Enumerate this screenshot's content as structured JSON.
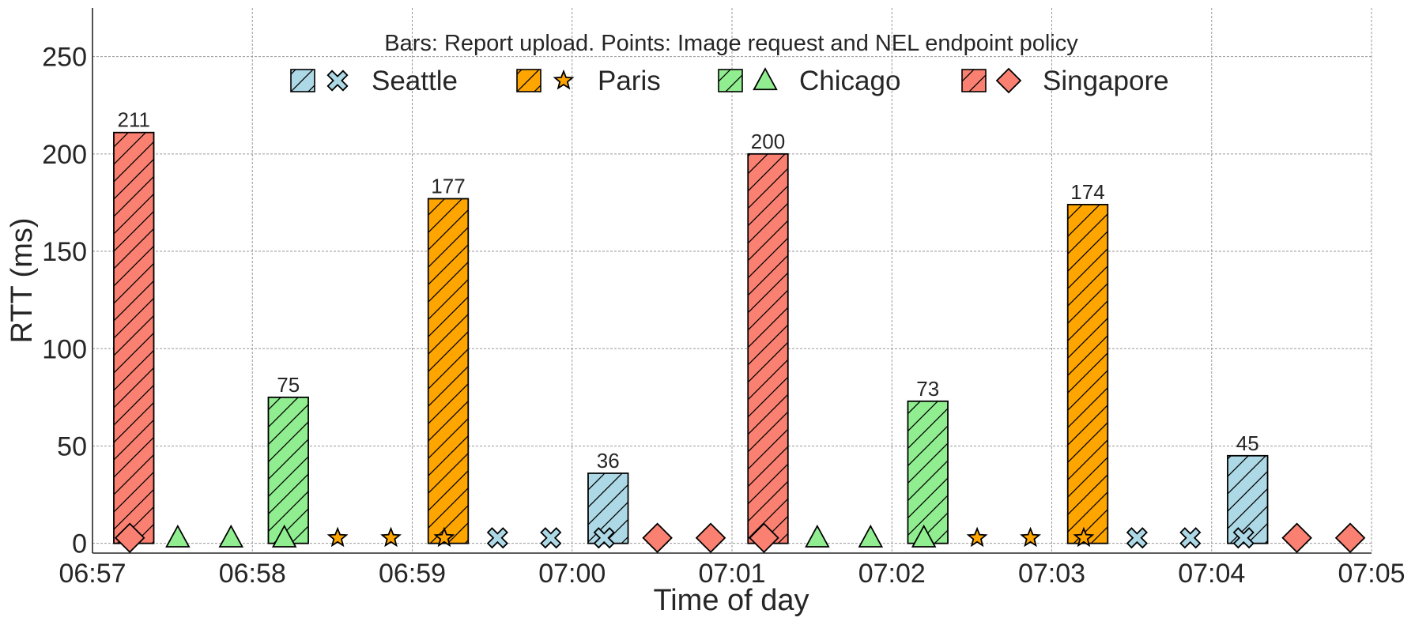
{
  "chart_data": {
    "type": "bar",
    "title": "Bars: Report upload. Points: Image request and NEL endpoint policy",
    "xlabel": "Time of day",
    "ylabel": "RTT (ms)",
    "ylim": [
      -5,
      275
    ],
    "xlim": [
      "06:57:00",
      "07:05:00"
    ],
    "x_ticks": [
      "06:57",
      "06:58",
      "06:59",
      "07:00",
      "07:01",
      "07:02",
      "07:03",
      "07:04",
      "07:05"
    ],
    "y_ticks": [
      0,
      50,
      100,
      150,
      200,
      250
    ],
    "grid": true,
    "legend_position": "top-center",
    "series": [
      {
        "name": "Seattle",
        "color": "#add8e6",
        "marker": "x-cross-icon"
      },
      {
        "name": "Paris",
        "color": "#ffa500",
        "marker": "star-icon"
      },
      {
        "name": "Chicago",
        "color": "#90ee90",
        "marker": "triangle-icon"
      },
      {
        "name": "Singapore",
        "color": "#fa8072",
        "marker": "diamond-icon"
      }
    ],
    "bars": [
      {
        "series": "Singapore",
        "start": "06:57:08",
        "end": "06:57:23",
        "value": 211,
        "label": "211"
      },
      {
        "series": "Chicago",
        "start": "06:58:06",
        "end": "06:58:21",
        "value": 75,
        "label": "75"
      },
      {
        "series": "Paris",
        "start": "06:59:06",
        "end": "06:59:21",
        "value": 177,
        "label": "177"
      },
      {
        "series": "Seattle",
        "start": "07:00:06",
        "end": "07:00:21",
        "value": 36,
        "label": "36"
      },
      {
        "series": "Singapore",
        "start": "07:01:06",
        "end": "07:01:21",
        "value": 200,
        "label": "200"
      },
      {
        "series": "Chicago",
        "start": "07:02:06",
        "end": "07:02:21",
        "value": 73,
        "label": "73"
      },
      {
        "series": "Paris",
        "start": "07:03:06",
        "end": "07:03:21",
        "value": 174,
        "label": "174"
      },
      {
        "series": "Seattle",
        "start": "07:04:06",
        "end": "07:04:21",
        "value": 45,
        "label": "45"
      }
    ],
    "points": [
      {
        "series": "Singapore",
        "t": "06:57:14",
        "value": 2
      },
      {
        "series": "Chicago",
        "t": "06:57:32",
        "value": 2
      },
      {
        "series": "Chicago",
        "t": "06:57:52",
        "value": 2
      },
      {
        "series": "Chicago",
        "t": "06:58:12",
        "value": 2
      },
      {
        "series": "Paris",
        "t": "06:58:32",
        "value": 2
      },
      {
        "series": "Paris",
        "t": "06:58:52",
        "value": 2
      },
      {
        "series": "Paris",
        "t": "06:59:12",
        "value": 2
      },
      {
        "series": "Seattle",
        "t": "06:59:32",
        "value": 2
      },
      {
        "series": "Seattle",
        "t": "06:59:52",
        "value": 2
      },
      {
        "series": "Seattle",
        "t": "07:00:12",
        "value": 2
      },
      {
        "series": "Singapore",
        "t": "07:00:32",
        "value": 2
      },
      {
        "series": "Singapore",
        "t": "07:00:52",
        "value": 2
      },
      {
        "series": "Singapore",
        "t": "07:01:12",
        "value": 2
      },
      {
        "series": "Chicago",
        "t": "07:01:32",
        "value": 2
      },
      {
        "series": "Chicago",
        "t": "07:01:52",
        "value": 2
      },
      {
        "series": "Chicago",
        "t": "07:02:12",
        "value": 2
      },
      {
        "series": "Paris",
        "t": "07:02:32",
        "value": 2
      },
      {
        "series": "Paris",
        "t": "07:02:52",
        "value": 2
      },
      {
        "series": "Paris",
        "t": "07:03:12",
        "value": 2
      },
      {
        "series": "Seattle",
        "t": "07:03:32",
        "value": 2
      },
      {
        "series": "Seattle",
        "t": "07:03:52",
        "value": 2
      },
      {
        "series": "Seattle",
        "t": "07:04:12",
        "value": 2
      },
      {
        "series": "Singapore",
        "t": "07:04:32",
        "value": 2
      },
      {
        "series": "Singapore",
        "t": "07:04:52",
        "value": 2
      }
    ]
  }
}
